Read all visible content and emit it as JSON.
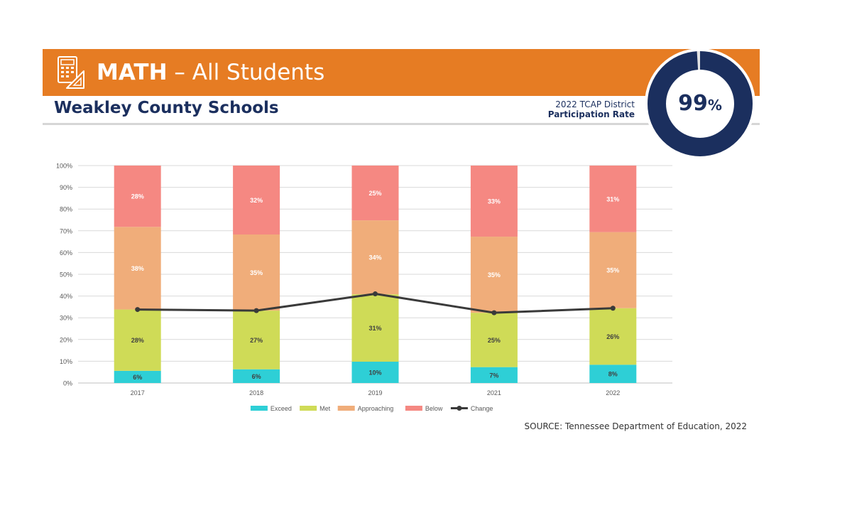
{
  "header": {
    "subject": "MATH",
    "dash": "–",
    "group": "All Students",
    "district": "Weakley County Schools",
    "participation_label_line1": "2022 TCAP District",
    "participation_label_line2": "Participation Rate",
    "participation_value": "99",
    "participation_unit": "%",
    "participation_rate": 0.99
  },
  "colors": {
    "banner": "#e67c23",
    "navy": "#1b2f5e",
    "exceed": "#2ecfd6",
    "met": "#cfdb57",
    "approaching": "#f0ad7a",
    "below": "#f58882",
    "change": "#3a3a3a"
  },
  "icon": "calculator-ruler-icon",
  "chart_data": {
    "type": "bar",
    "stacked": true,
    "categories": [
      "2017",
      "2018",
      "2019",
      "2021",
      "2022"
    ],
    "ylim": [
      0,
      100
    ],
    "yticks": [
      "0%",
      "10%",
      "20%",
      "30%",
      "40%",
      "50%",
      "60%",
      "70%",
      "80%",
      "90%",
      "100%"
    ],
    "grid": true,
    "legend_position": "bottom",
    "series": [
      {
        "name": "Exceed",
        "values": [
          5.6,
          6.3,
          9.8,
          7.3,
          8.4
        ],
        "labels": [
          "6%",
          "6%",
          "10%",
          "7%",
          "8%"
        ],
        "color": "#2ecfd6",
        "label_color": "#404040"
      },
      {
        "name": "Met",
        "values": [
          28.2,
          27.0,
          31.0,
          25.0,
          26.0
        ],
        "labels": [
          "28%",
          "27%",
          "31%",
          "25%",
          "26%"
        ],
        "color": "#cfdb57",
        "label_color": "#404040"
      },
      {
        "name": "Approaching",
        "values": [
          38.0,
          35.0,
          34.0,
          35.0,
          35.0
        ],
        "labels": [
          "38%",
          "35%",
          "34%",
          "35%",
          "35%"
        ],
        "color": "#f0ad7a",
        "label_color": "#ffffff"
      },
      {
        "name": "Below",
        "values": [
          28.2,
          31.7,
          25.2,
          32.7,
          30.6
        ],
        "labels": [
          "28%",
          "32%",
          "25%",
          "33%",
          "31%"
        ],
        "color": "#f58882",
        "label_color": "#ffffff"
      }
    ],
    "line_series": {
      "name": "Change",
      "values": [
        33.8,
        33.3,
        41.0,
        32.3,
        34.4
      ],
      "color": "#3a3a3a"
    }
  },
  "source": "SOURCE: Tennessee Department of Education, 2022"
}
